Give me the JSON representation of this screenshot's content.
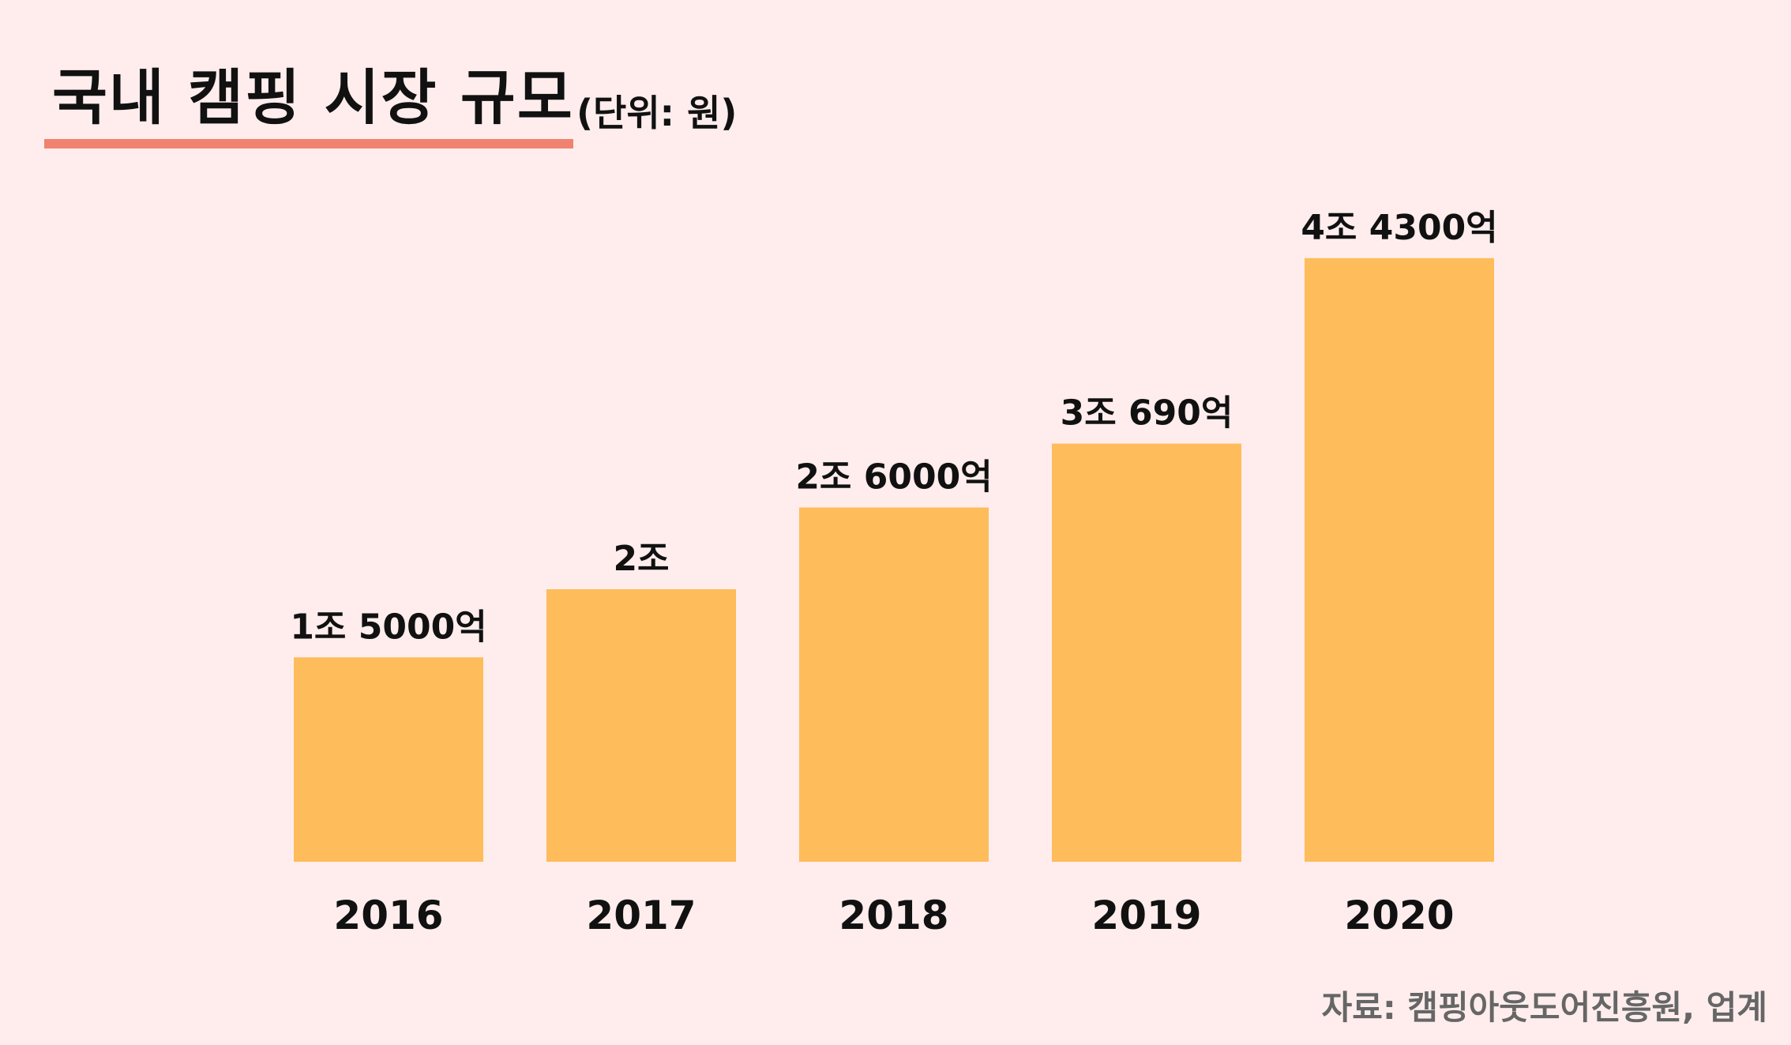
{
  "chart_data": {
    "type": "bar",
    "title": "국내 캠핑 시장 규모",
    "subtitle": "(단위: 원)",
    "categories": [
      "2016",
      "2017",
      "2018",
      "2019",
      "2020"
    ],
    "values": [
      15000,
      20000,
      26000,
      30690,
      44300
    ],
    "value_unit": "억 원",
    "data_labels": [
      "1조 5000억",
      "2조",
      "2조 6000억",
      "3조 690억",
      "4조 4300억"
    ],
    "xlabel": "",
    "ylabel": "",
    "ylim": [
      0,
      48000
    ],
    "grid": false,
    "bar_color": "#FEBC5A",
    "accent_color": "#F08370",
    "source": "자료: 캠핑아웃도어진흥원, 업계"
  }
}
